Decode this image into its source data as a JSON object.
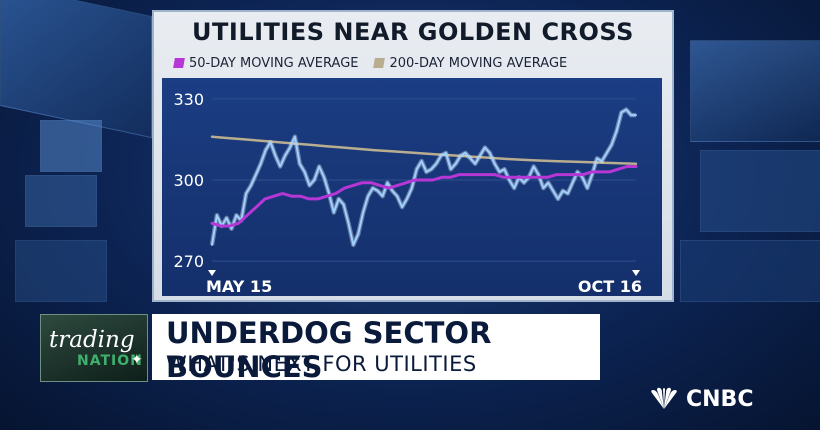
{
  "colors": {
    "ma50": "#b637d6",
    "ma200": "#b8ad8f",
    "price": "#9fd1ff",
    "plot_bg": "#183670",
    "grid": "#2d4f8f"
  },
  "banner": {
    "show_brand_top": "trading",
    "show_brand_bottom": "NATION",
    "headline": "UNDERDOG SECTOR BOUNCES",
    "subheadline": "WHAT'S NEXT FOR UTILITIES"
  },
  "network": {
    "name": "CNBC",
    "icon": "peacock-icon"
  },
  "chart_data": {
    "type": "line",
    "title": "UTILITIES NEAR GOLDEN CROSS",
    "x_labels": [
      "MAY 15",
      "OCT 16"
    ],
    "y_ticks": [
      270,
      300,
      330
    ],
    "ylim": [
      266,
      334
    ],
    "grid": true,
    "legend_position": "top-left",
    "series": [
      {
        "name": "",
        "key": "price",
        "values": [
          276,
          287,
          283,
          286,
          282,
          287,
          285,
          295,
          298,
          302,
          306,
          311,
          314,
          309,
          305,
          309,
          312,
          316,
          306,
          303,
          298,
          300,
          305,
          301,
          295,
          288,
          293,
          291,
          284,
          276,
          280,
          288,
          294,
          297,
          296,
          294,
          299,
          296,
          294,
          290,
          293,
          297,
          304,
          307,
          303,
          304,
          306,
          309,
          310,
          304,
          306,
          309,
          310,
          308,
          306,
          309,
          312,
          310,
          306,
          303,
          304,
          300,
          297,
          301,
          299,
          301,
          305,
          302,
          297,
          299,
          296,
          293,
          296,
          295,
          299,
          303,
          301,
          297,
          302,
          308,
          307,
          310,
          313,
          318,
          325,
          326,
          324,
          324
        ]
      },
      {
        "name": "50-DAY MOVING AVERAGE",
        "key": "ma50",
        "values": [
          284,
          283,
          283,
          284,
          287,
          290,
          293,
          294,
          295,
          294,
          294,
          293,
          293,
          294,
          295,
          297,
          298,
          299,
          299,
          298,
          297,
          298,
          299,
          300,
          300,
          300,
          301,
          301,
          302,
          302,
          302,
          302,
          302,
          301,
          301,
          301,
          301,
          301,
          301,
          302,
          302,
          302,
          302,
          303,
          303,
          303,
          304,
          305,
          305
        ]
      },
      {
        "name": "200-DAY MOVING AVERAGE",
        "key": "ma200",
        "values": [
          316,
          315.5,
          315,
          314.5,
          314,
          313.5,
          313,
          312.5,
          312,
          311.5,
          311,
          310.6,
          310.2,
          309.8,
          309.4,
          309,
          308.6,
          308.2,
          307.8,
          307.5,
          307.2,
          307,
          306.8,
          306.6,
          306.4,
          306.2,
          306
        ]
      }
    ]
  }
}
